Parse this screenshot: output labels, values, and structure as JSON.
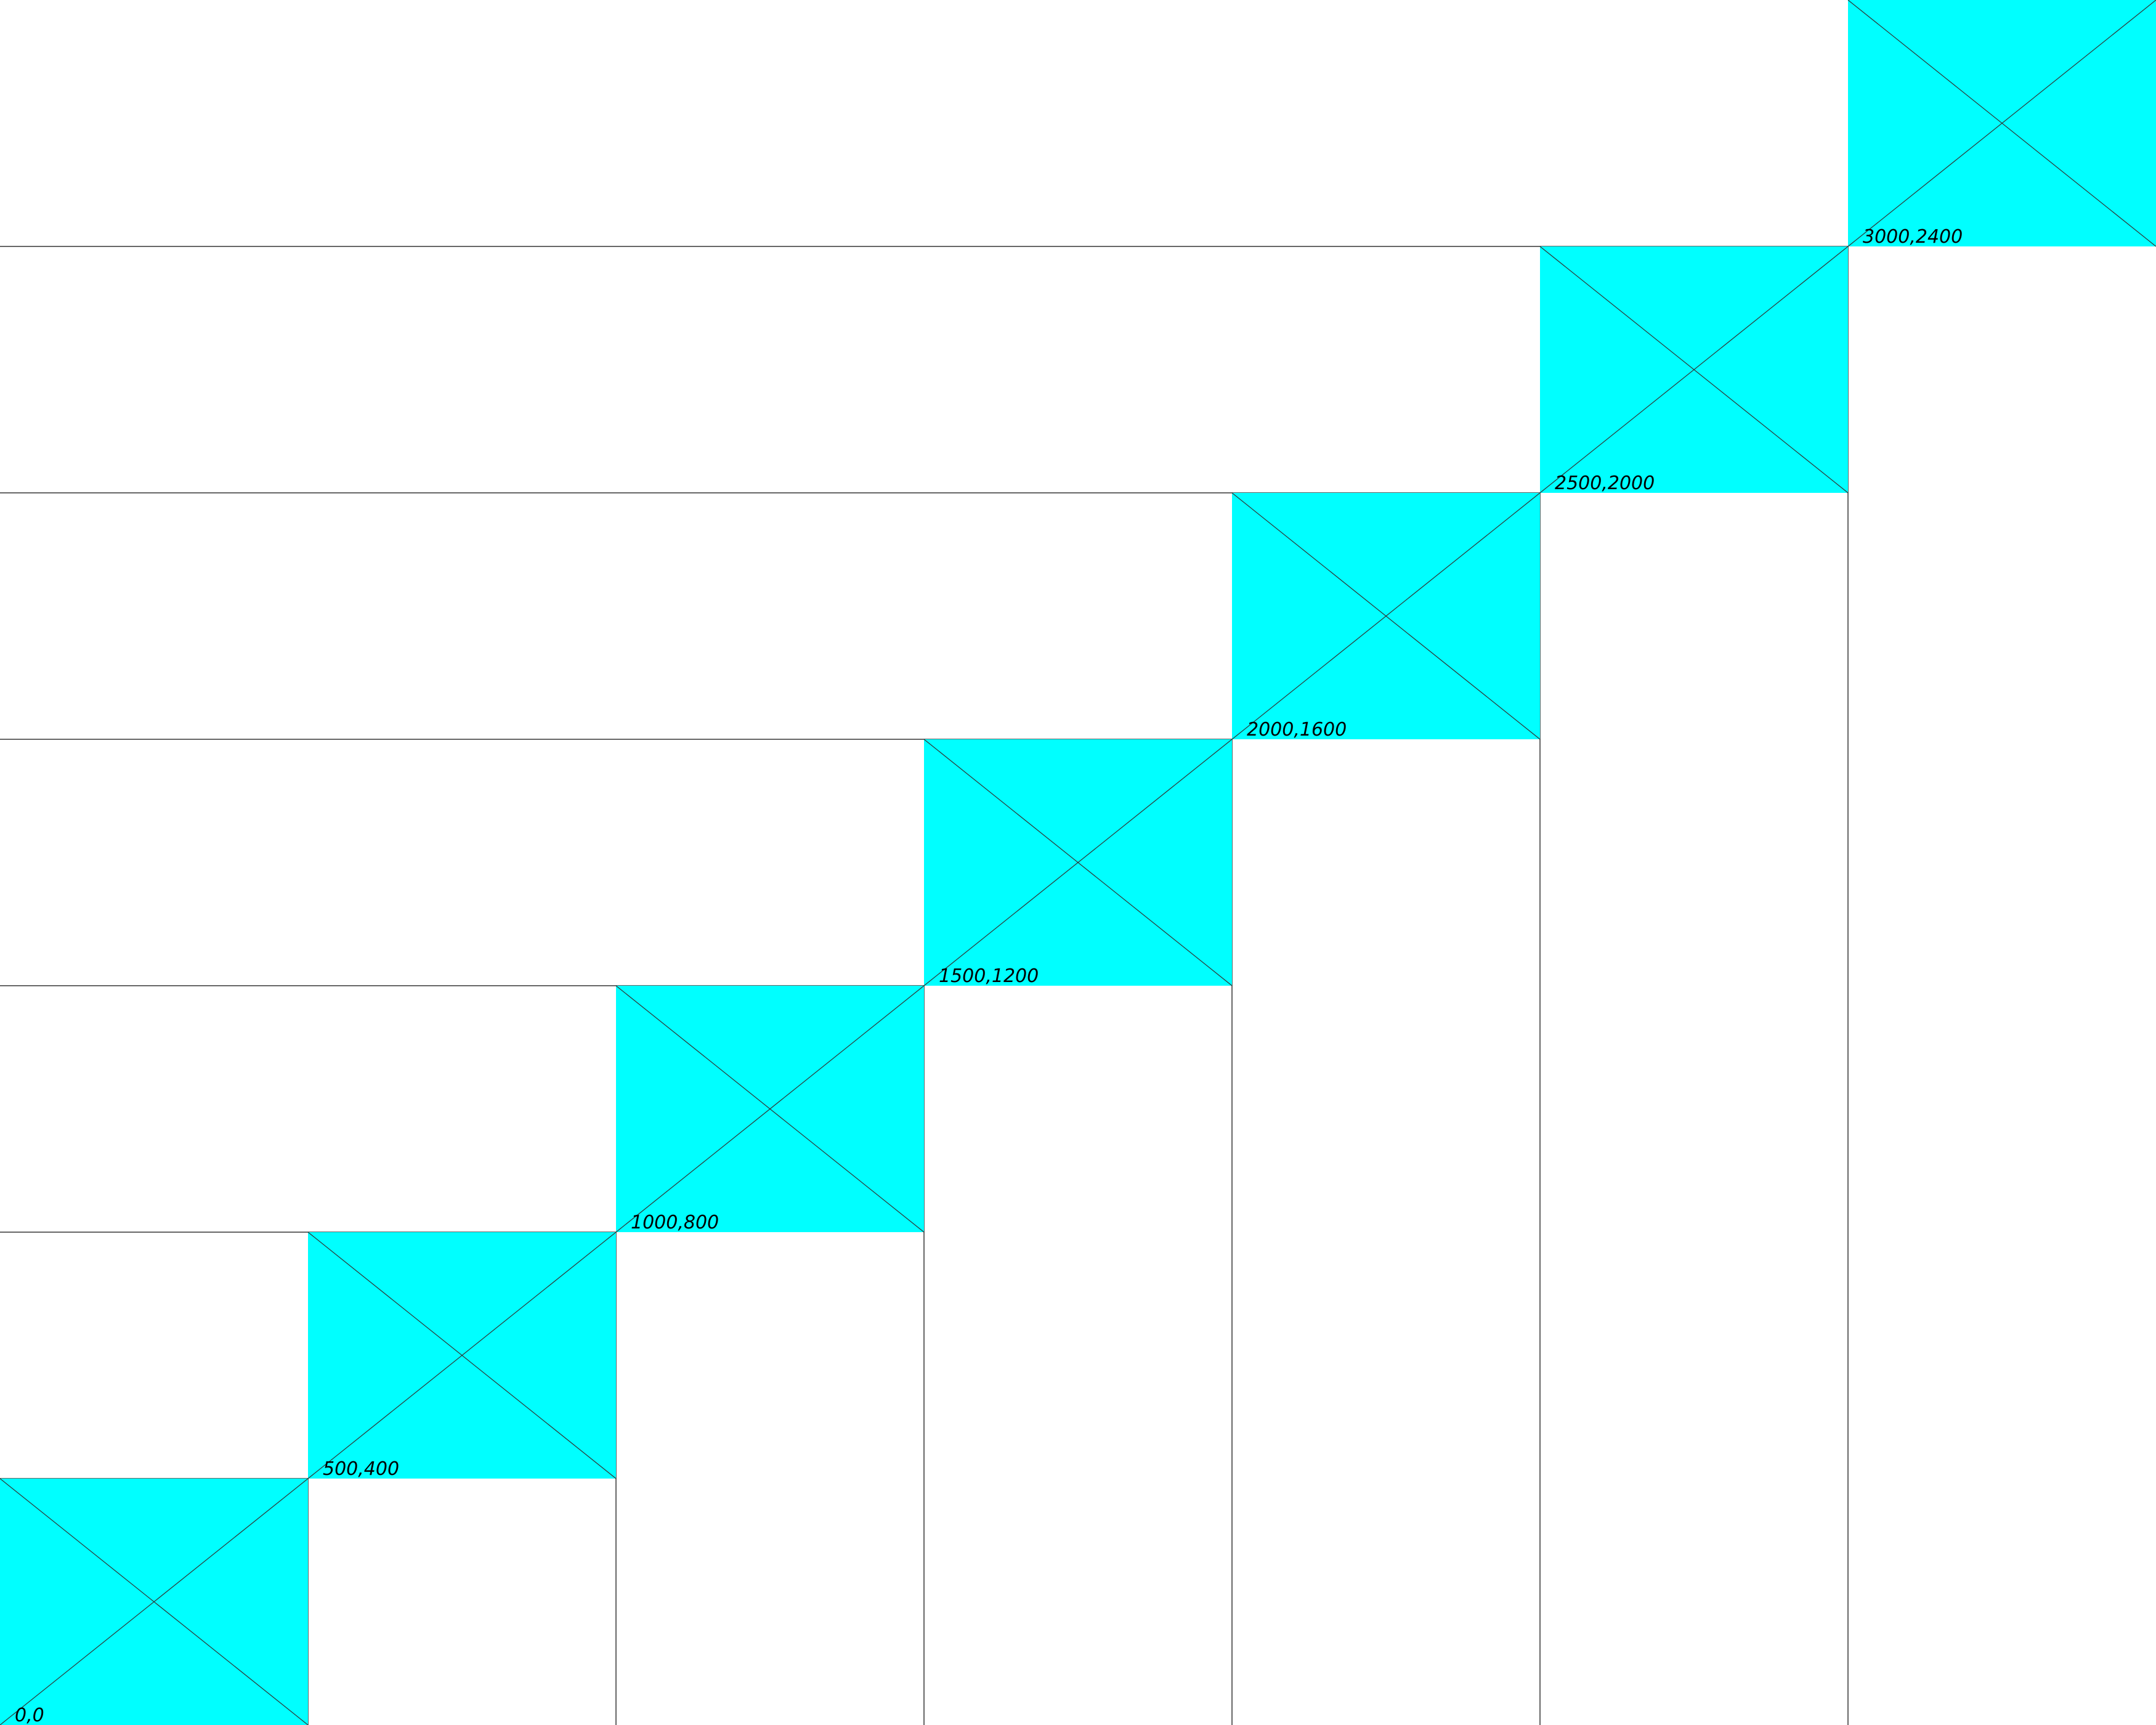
{
  "colors": {
    "cell_fill": "#00ffff",
    "guide_line": "#666666",
    "cross_line": "#333333",
    "label_text": "#000000",
    "background": "#ffffff"
  },
  "cells": [
    {
      "label": "0,0"
    },
    {
      "label": "500,400"
    },
    {
      "label": "1000,800"
    },
    {
      "label": "1500,1200"
    },
    {
      "label": "2000,1600"
    },
    {
      "label": "2500,2000"
    },
    {
      "label": "3000,2400"
    }
  ]
}
